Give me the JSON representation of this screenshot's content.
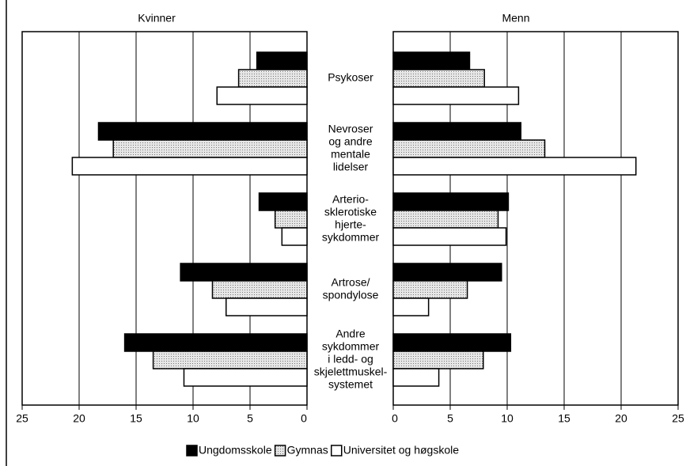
{
  "chart_data": {
    "type": "butterfly-bar",
    "categories": [
      [
        "Psykoser"
      ],
      [
        "Nevroser",
        "og andre",
        "mentale",
        "lidelser"
      ],
      [
        "Arterio-",
        "sklerotiske",
        "hjerte-",
        "sykdommer"
      ],
      [
        "Artrose/",
        "spondylose"
      ],
      [
        "Andre",
        "sykdommer",
        "i ledd- og",
        "skjelettmuskel-",
        "systemet"
      ]
    ],
    "series": [
      {
        "name": "Ungdomsskole",
        "color": "#000000"
      },
      {
        "name": "Gymnas",
        "color": "#c4c4c4"
      },
      {
        "name": "Universitet og høgskole",
        "color": "#ffffff"
      }
    ],
    "panels": [
      {
        "title": "Kvinner",
        "reversed": true,
        "xlim": [
          0,
          25
        ],
        "xticks": [
          0,
          5,
          10,
          15,
          20,
          25
        ],
        "values": [
          [
            4.4,
            18.3,
            4.2,
            11.1,
            16.0
          ],
          [
            6.0,
            17.0,
            2.8,
            8.3,
            13.5
          ],
          [
            7.9,
            20.6,
            2.2,
            7.1,
            10.8
          ]
        ]
      },
      {
        "title": "Menn",
        "reversed": false,
        "xlim": [
          0,
          25
        ],
        "xticks": [
          0,
          5,
          10,
          15,
          20,
          25
        ],
        "values": [
          [
            6.7,
            11.2,
            10.1,
            9.5,
            10.3
          ],
          [
            8.0,
            13.3,
            9.2,
            6.5,
            7.9
          ],
          [
            11.0,
            21.3,
            9.9,
            3.1,
            4.0
          ]
        ]
      }
    ],
    "grid": true
  }
}
